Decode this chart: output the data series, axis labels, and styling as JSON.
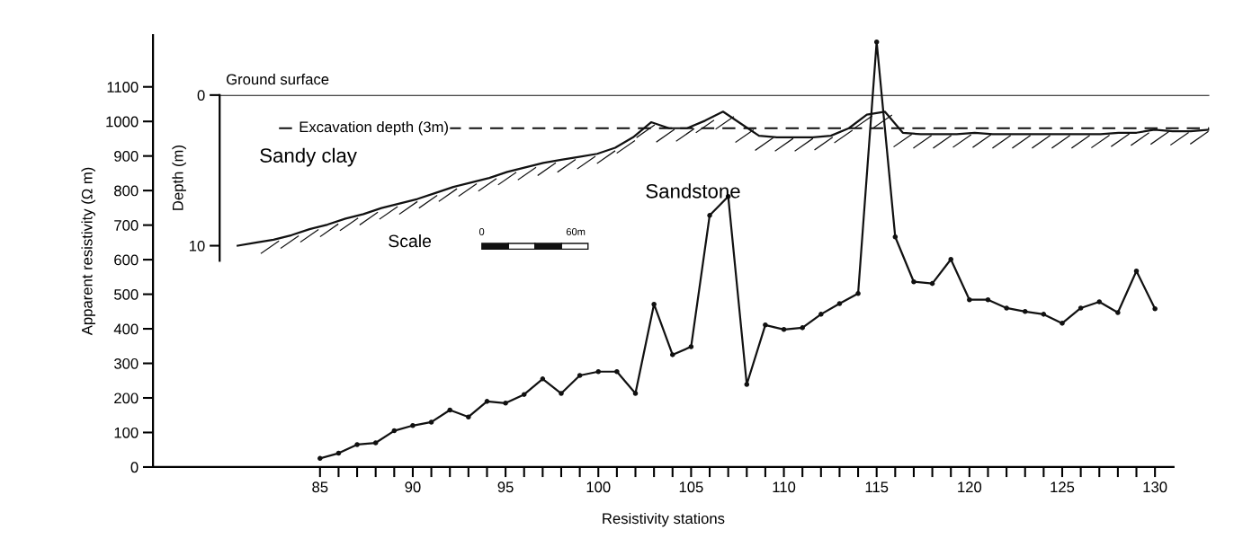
{
  "chart_data": [
    {
      "type": "line",
      "xlabel": "Resistivity stations",
      "ylabel": "Apparent resistivity (Ω m)",
      "x": [
        85,
        86,
        87,
        88,
        89,
        90,
        91,
        92,
        93,
        94,
        95,
        96,
        97,
        98,
        99,
        100,
        101,
        102,
        103,
        104,
        105,
        106,
        107,
        108,
        109,
        110,
        111,
        112,
        113,
        114,
        115,
        116,
        117,
        118,
        119,
        120,
        121,
        122,
        123,
        124,
        125,
        126,
        127,
        128,
        129,
        130
      ],
      "series": [
        {
          "color": "#111111",
          "values": [
            25,
            40,
            65,
            70,
            105,
            120,
            130,
            165,
            145,
            190,
            185,
            210,
            255,
            213,
            265,
            276,
            276,
            213,
            471,
            325,
            348,
            728,
            783,
            239,
            411,
            398,
            403,
            442,
            473,
            502,
            1230,
            666,
            536,
            531,
            601,
            484,
            484,
            460,
            450,
            442,
            416,
            460,
            478,
            447,
            567,
            458
          ]
        }
      ],
      "xlim": [
        76,
        131
      ],
      "ylim": [
        0,
        1250
      ],
      "xticks": [
        85,
        {
          "value": 86,
          "label": null
        },
        {
          "value": 87,
          "label": null
        },
        {
          "value": 88,
          "label": null
        },
        {
          "value": 89,
          "label": null
        },
        90,
        {
          "value": 91,
          "label": null
        },
        {
          "value": 92,
          "label": null
        },
        {
          "value": 93,
          "label": null
        },
        {
          "value": 94,
          "label": null
        },
        95,
        {
          "value": 96,
          "label": null
        },
        {
          "value": 97,
          "label": null
        },
        {
          "value": 98,
          "label": null
        },
        {
          "value": 99,
          "label": null
        },
        100,
        {
          "value": 101,
          "label": null
        },
        {
          "value": 102,
          "label": null
        },
        {
          "value": 103,
          "label": null
        },
        {
          "value": 104,
          "label": null
        },
        105,
        {
          "value": 106,
          "label": null
        },
        {
          "value": 107,
          "label": null
        },
        {
          "value": 108,
          "label": null
        },
        {
          "value": 109,
          "label": null
        },
        110,
        {
          "value": 111,
          "label": null
        },
        {
          "value": 112,
          "label": null
        },
        {
          "value": 113,
          "label": null
        },
        {
          "value": 114,
          "label": null
        },
        115,
        {
          "value": 116,
          "label": null
        },
        {
          "value": 117,
          "label": null
        },
        {
          "value": 118,
          "label": null
        },
        {
          "value": 119,
          "label": null
        },
        120,
        {
          "value": 121,
          "label": null
        },
        {
          "value": 122,
          "label": null
        },
        {
          "value": 123,
          "label": null
        },
        {
          "value": 124,
          "label": null
        },
        125,
        {
          "value": 126,
          "label": null
        },
        {
          "value": 127,
          "label": null
        },
        {
          "value": 128,
          "label": null
        },
        {
          "value": 129,
          "label": null
        },
        130
      ],
      "yticks": [
        0,
        100,
        200,
        300,
        400,
        500,
        600,
        700,
        800,
        900,
        1000,
        1100
      ],
      "marker": "circle",
      "line_style": "solid",
      "grid": false,
      "legend": false
    },
    {
      "type": "line",
      "ylabel": "Depth (m)",
      "categories": [
        null,
        null,
        null,
        null,
        null,
        null,
        null,
        null,
        null,
        null,
        null,
        null,
        null,
        null,
        null,
        null,
        null,
        null,
        null,
        null,
        null,
        null,
        null,
        null,
        null,
        null,
        null,
        null,
        null,
        null,
        null,
        null,
        null,
        null,
        null,
        null,
        null,
        null,
        null,
        null,
        null,
        null,
        null,
        null,
        null,
        null,
        null,
        null,
        null,
        null,
        null,
        null,
        null,
        null,
        null
      ],
      "series": [
        {
          "color": "#111111",
          "values": [
            10.0,
            9.8,
            9.6,
            9.3,
            8.9,
            8.6,
            8.2,
            7.9,
            7.5,
            7.2,
            6.9,
            6.5,
            6.1,
            5.8,
            5.5,
            5.1,
            4.8,
            4.5,
            4.3,
            4.1,
            3.9,
            3.5,
            2.8,
            1.8,
            2.2,
            2.2,
            1.7,
            1.1,
            1.9,
            2.7,
            2.8,
            2.8,
            2.8,
            2.7,
            2.2,
            1.3,
            1.1,
            2.5,
            2.6,
            2.6,
            2.6,
            2.5,
            2.6,
            2.6,
            2.6,
            2.6,
            2.6,
            2.6,
            2.6,
            2.5,
            2.5,
            2.3,
            2.4,
            2.4,
            2.3
          ]
        }
      ],
      "ylim": [
        11,
        0
      ],
      "yticks": [
        0,
        10
      ],
      "tick_labels": "y",
      "ref_lines": [
        {
          "axis": "y",
          "value": 0,
          "label": "Ground surface",
          "line_style": "solid",
          "color": "#111111"
        },
        {
          "axis": "y",
          "value": 2.2,
          "label": "Excavation depth (3m)",
          "line_style": "dashed",
          "color": "#111111"
        }
      ],
      "annotations": [
        {
          "text": "Sandy clay"
        },
        {
          "text": "Sandstone"
        },
        {
          "text": "Scale"
        },
        {
          "text": "0"
        },
        {
          "text": "60m"
        }
      ],
      "marker": "none",
      "line_style": "solid",
      "grid": false,
      "legend": false
    }
  ]
}
